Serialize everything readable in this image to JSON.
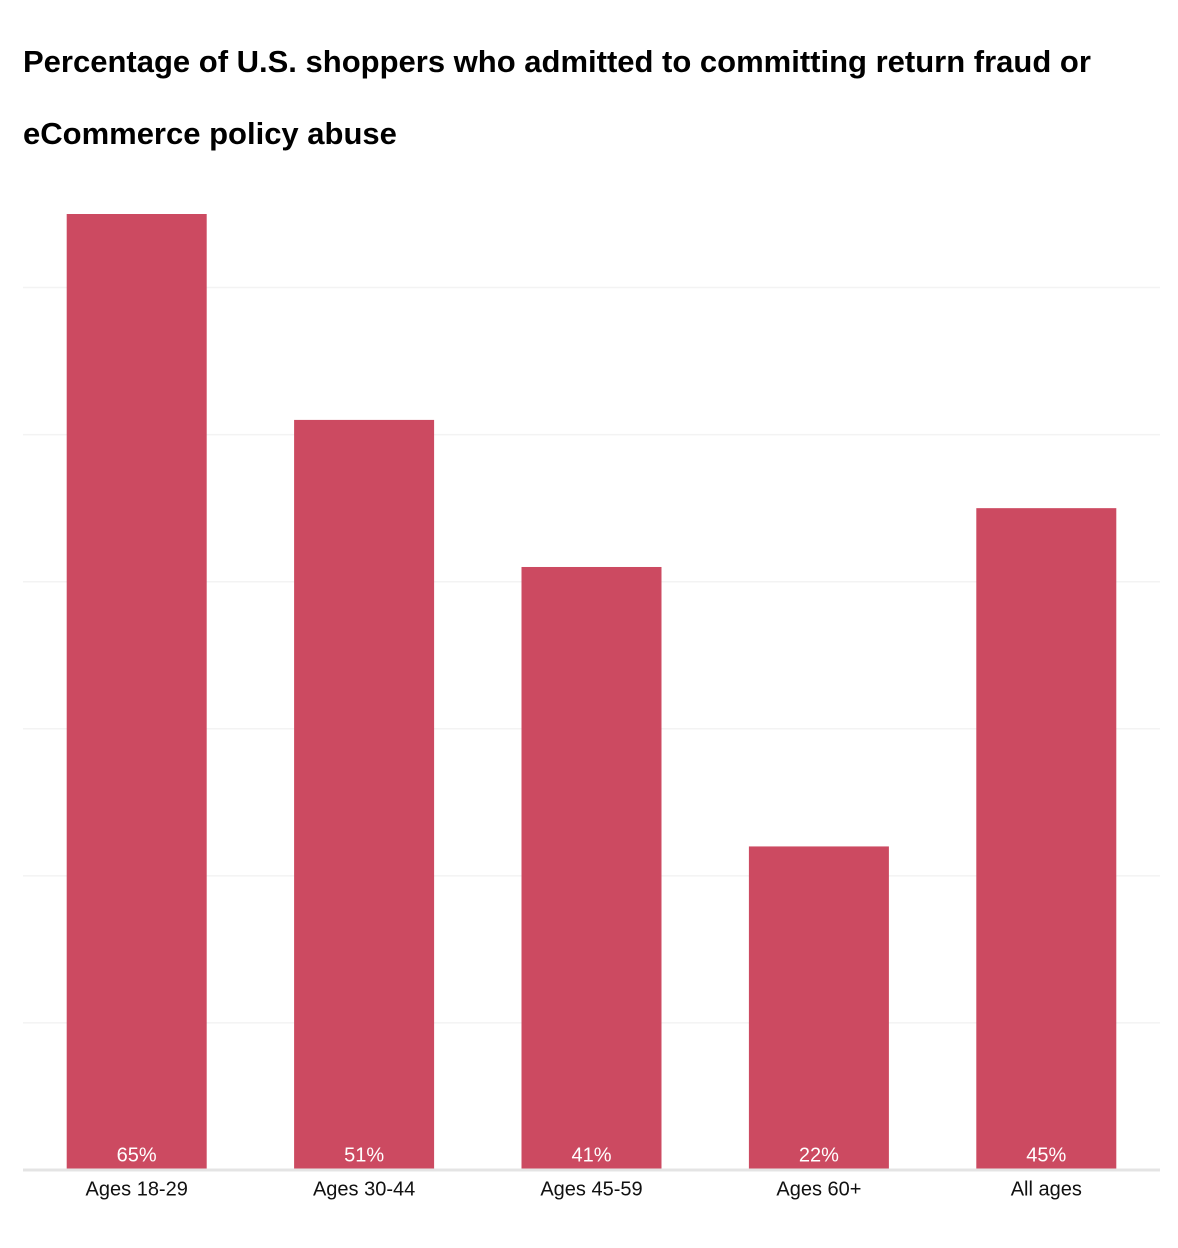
{
  "chart_data": {
    "type": "bar",
    "title": "Percentage of U.S. shoppers who admitted to committing return fraud or eCommerce policy abuse",
    "categories": [
      "Ages 18-29",
      "Ages 30-44",
      "Ages 45-59",
      "Ages 60+",
      "All ages"
    ],
    "values": [
      65,
      51,
      41,
      22,
      45
    ],
    "value_labels": [
      "65%",
      "51%",
      "41%",
      "22%",
      "45%"
    ],
    "color": "#cc4a61",
    "ylim": [
      0,
      65
    ],
    "yticks": [
      0,
      10,
      20,
      30,
      40,
      50,
      60
    ],
    "grid": true
  }
}
